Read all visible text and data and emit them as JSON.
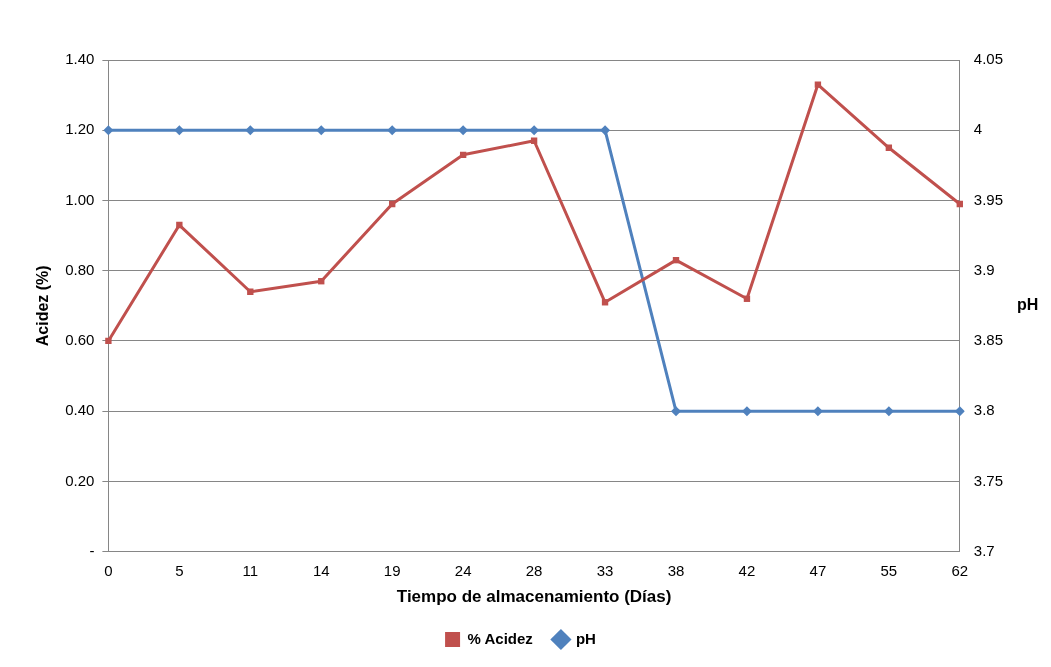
{
  "chart_data": {
    "type": "line",
    "xlabel": "Tiempo de almacenamiento (Días)",
    "ylabel": "Acidez (%)",
    "y2label": "pH",
    "categories": [
      "0",
      "5",
      "11",
      "14",
      "19",
      "24",
      "28",
      "33",
      "38",
      "42",
      "47",
      "55",
      "62"
    ],
    "series": [
      {
        "name": "% Acidez",
        "color": "#c0504d",
        "marker": "square",
        "values": [
          0.6,
          0.93,
          0.74,
          0.77,
          0.99,
          1.13,
          1.17,
          0.71,
          0.83,
          0.72,
          1.33,
          1.15,
          0.99
        ]
      },
      {
        "name": "pH",
        "color": "#4f81bd",
        "marker": "diamond",
        "axis": "y2",
        "values": [
          4,
          4,
          4,
          4,
          4,
          4,
          4,
          4,
          3.8,
          3.8,
          3.8,
          3.8,
          3.8
        ]
      }
    ],
    "ylim": [
      0,
      1.4
    ],
    "yticks": [
      {
        "value": 0,
        "label": "-"
      },
      {
        "value": 0.2,
        "label": "0.20"
      },
      {
        "value": 0.4,
        "label": "0.40"
      },
      {
        "value": 0.6,
        "label": "0.60"
      },
      {
        "value": 0.8,
        "label": "0.80"
      },
      {
        "value": 1,
        "label": "1.00"
      },
      {
        "value": 1.2,
        "label": "1.20"
      },
      {
        "value": 1.4,
        "label": "1.40"
      }
    ],
    "y2lim": [
      3.7,
      4.05
    ],
    "y2ticks": [
      3.7,
      3.75,
      3.8,
      3.85,
      3.9,
      3.95,
      4,
      4.05
    ],
    "grid": "y",
    "legend": "bottom",
    "line_style": "solid"
  }
}
